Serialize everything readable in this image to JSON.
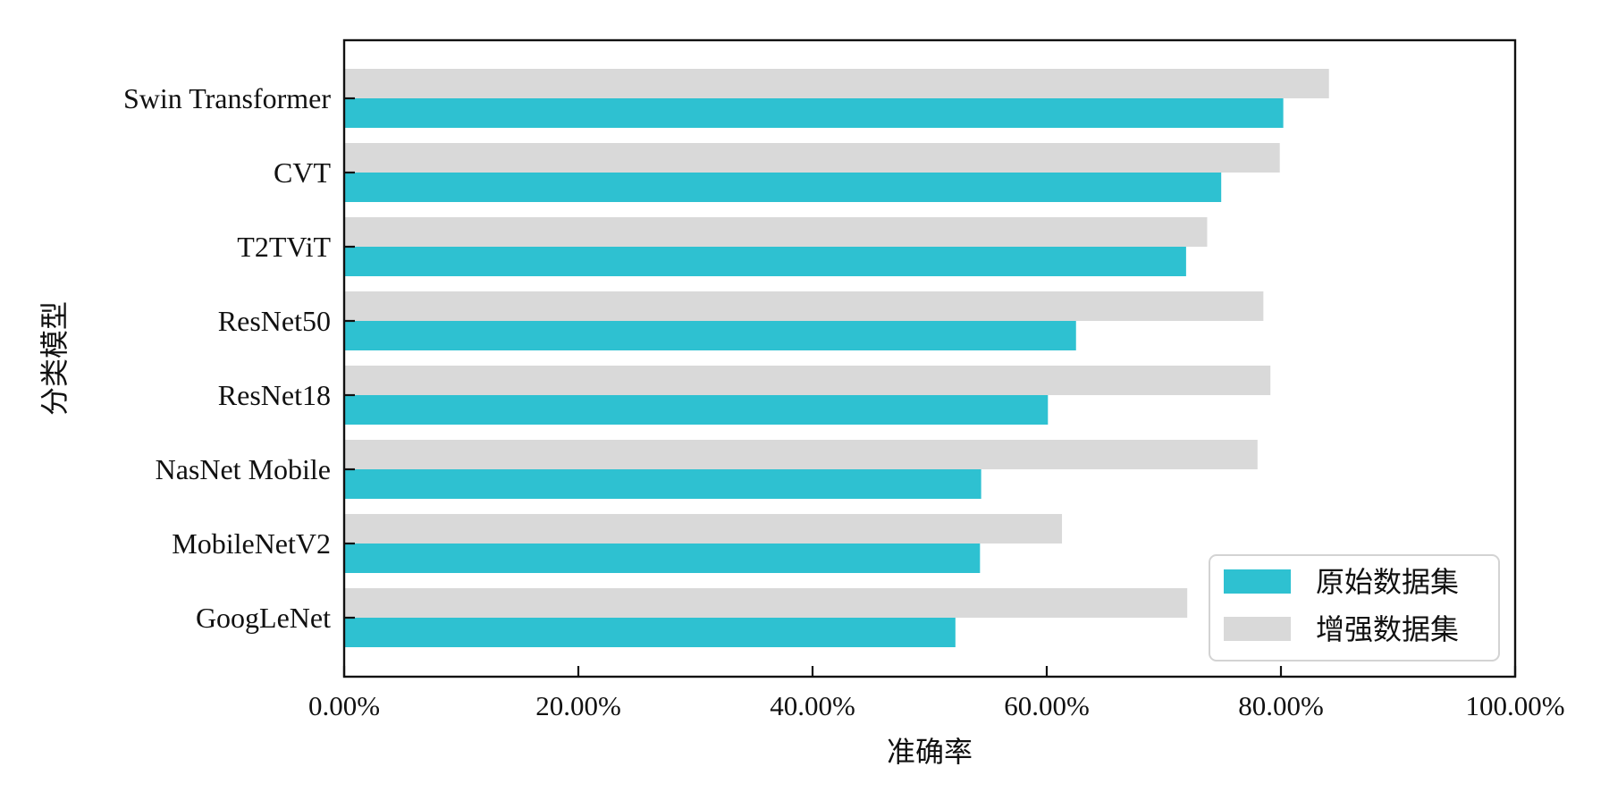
{
  "chart_data": {
    "type": "bar",
    "orientation": "horizontal",
    "title": "",
    "xlabel": "准确率",
    "ylabel": "分类模型",
    "categories": [
      "GoogLeNet",
      "MobileNetV2",
      "NasNet Mobile",
      "ResNet18",
      "ResNet50",
      "T2TViT",
      "CVT",
      "Swin Transformer"
    ],
    "series": [
      {
        "name": "原始数据集",
        "color": "#2ec1d1",
        "values": [
          52.2,
          54.3,
          54.4,
          60.1,
          62.5,
          71.9,
          74.9,
          80.2
        ]
      },
      {
        "name": "增强数据集",
        "color": "#d9d9d9",
        "values": [
          72.0,
          61.3,
          78.0,
          79.1,
          78.5,
          73.7,
          79.9,
          84.1
        ]
      }
    ],
    "xlim": [
      0,
      100
    ],
    "xticks": [
      0,
      20,
      40,
      60,
      80,
      100
    ],
    "xtick_labels": [
      "0.00%",
      "20.00%",
      "40.00%",
      "60.00%",
      "80.00%",
      "100.00%"
    ],
    "grid": false,
    "legend_position": "bottom-right"
  }
}
